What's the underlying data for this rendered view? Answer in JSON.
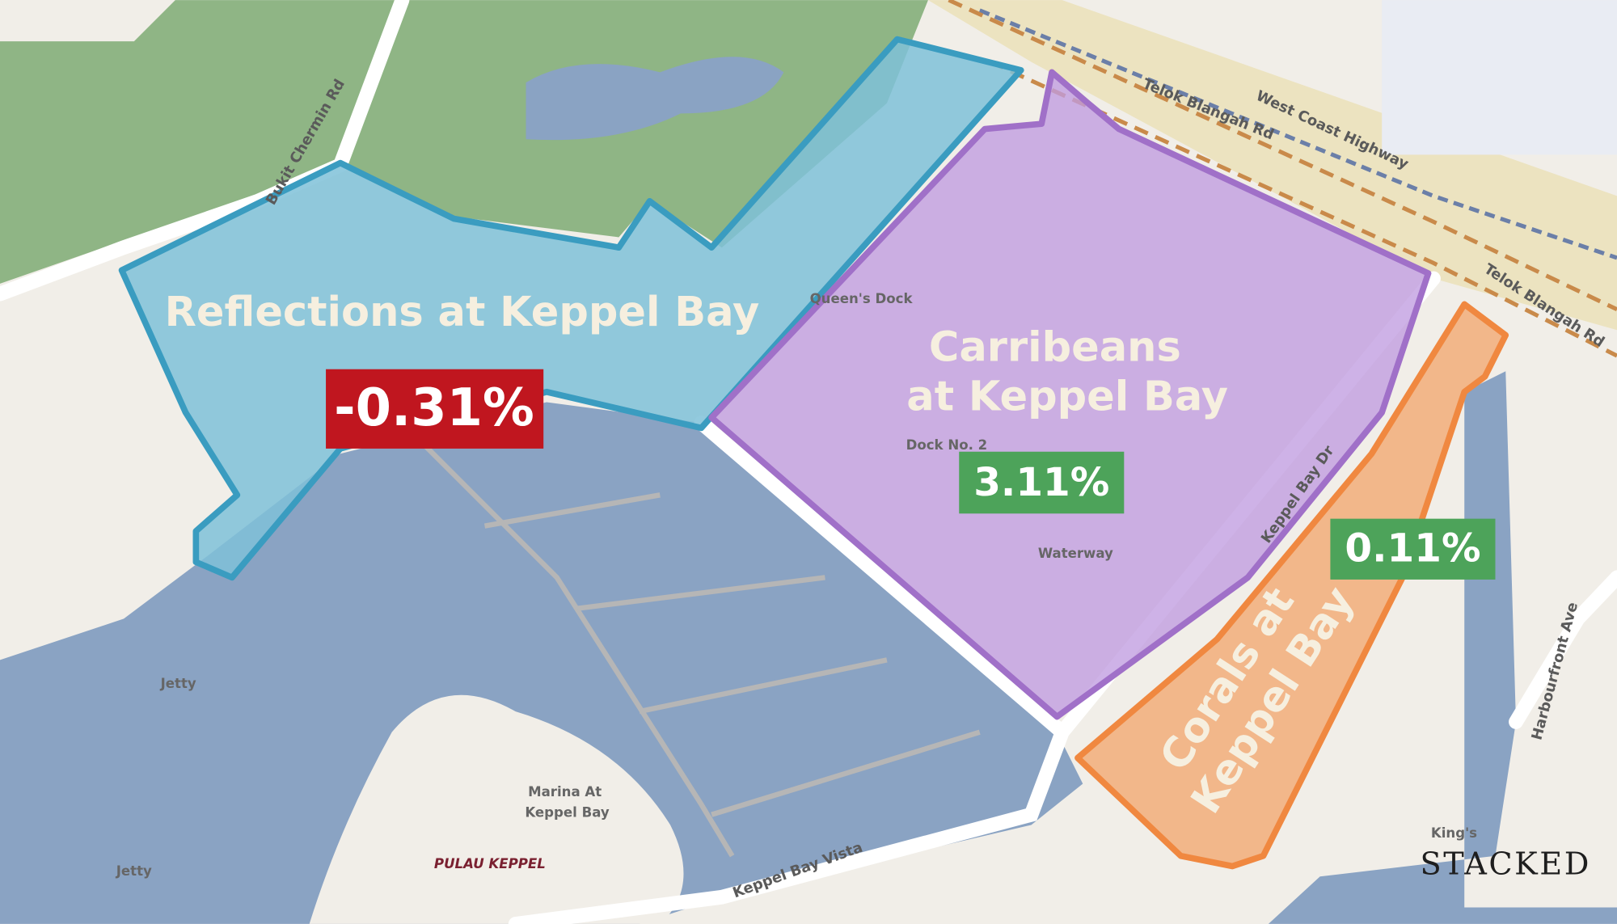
{
  "regions": [
    {
      "name_lines": [
        "Reflections at Keppel Bay"
      ],
      "change": "-0.31%"
    },
    {
      "name_lines": [
        "Carribeans",
        "at Keppel Bay"
      ],
      "change": "3.11%"
    },
    {
      "name_lines": [
        "Corals at",
        "Keppel Bay"
      ],
      "change": "0.11%"
    }
  ],
  "streets": [
    "Bukit Chermin Rd",
    "Telok Blangah Rd",
    "West Coast Highway",
    "Telok Blangah Rd",
    "Keppel Bay Dr",
    "Keppel Bay Vista",
    "Harbourfront Ave"
  ],
  "places": [
    "Queen's Dock",
    "Dock No. 2",
    "Waterway",
    "Jetty",
    "Jetty",
    "PULAU KEPPEL",
    "King's"
  ],
  "marina_lines": [
    "Marina At",
    "Keppel Bay"
  ],
  "brand": "STACKED"
}
